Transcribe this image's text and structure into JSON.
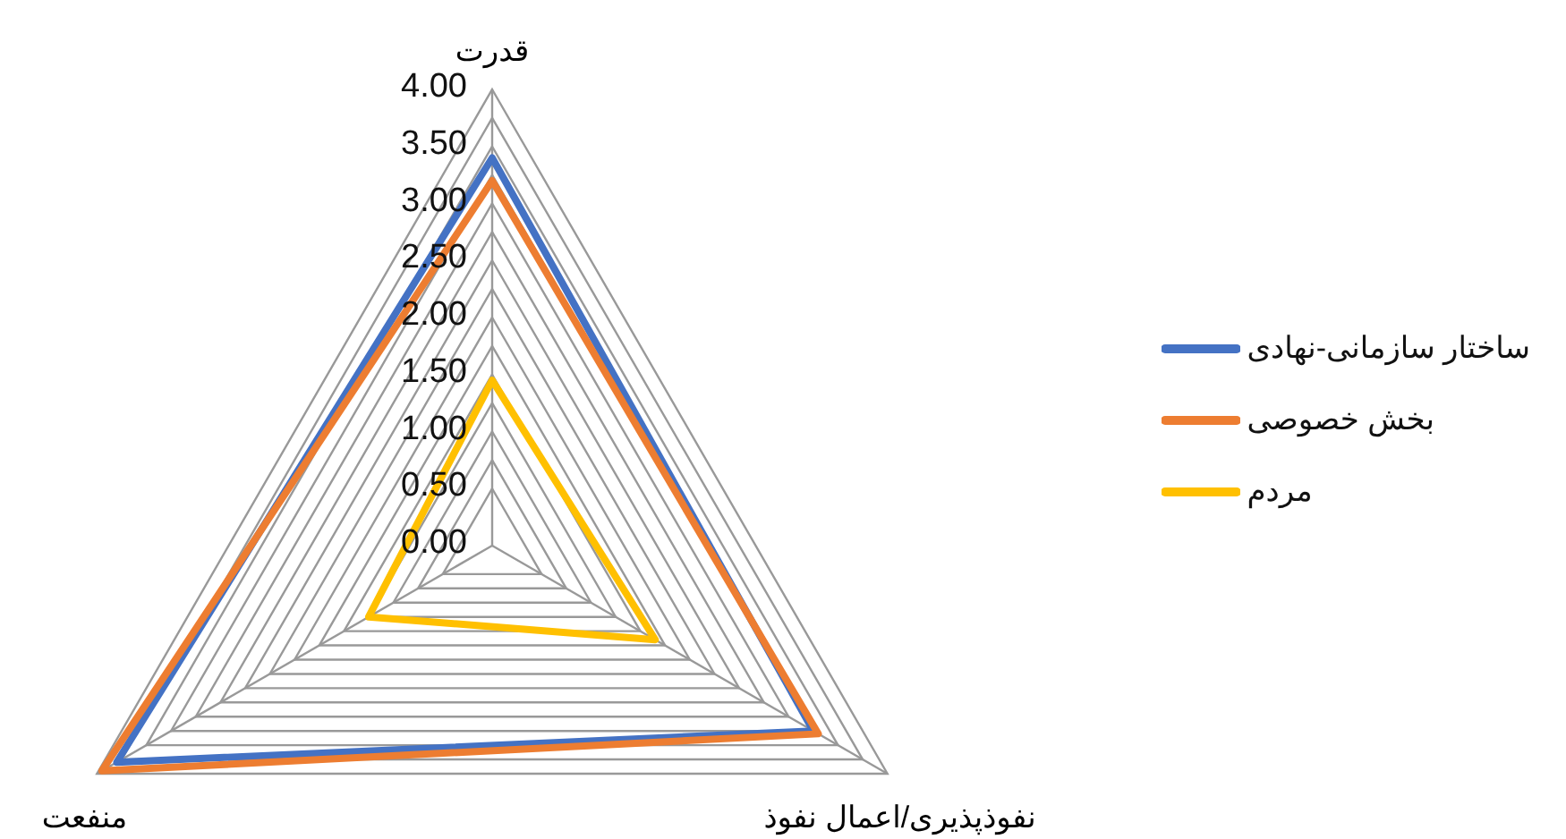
{
  "chart_data": {
    "type": "radar",
    "categories": [
      "قدرت",
      "نفوذپذیری/اعمال نفوذ",
      "منفعت"
    ],
    "series": [
      {
        "name": "ساختار سازمانی-نهادی",
        "color": "#4472c4",
        "values": [
          3.4,
          3.25,
          3.8
        ]
      },
      {
        "name": "بخش خصوصی",
        "color": "#ed7d31",
        "values": [
          3.2,
          3.3,
          3.95
        ]
      },
      {
        "name": "مردم",
        "color": "#ffc000",
        "values": [
          1.45,
          1.65,
          1.25
        ]
      }
    ],
    "ylim": [
      0,
      4
    ],
    "yticks": [
      {
        "value": 0,
        "label": "0.00"
      },
      {
        "value": 0.5,
        "label": "0.50"
      },
      {
        "value": 1,
        "label": "1.00"
      },
      {
        "value": 1.5,
        "label": "1.50"
      },
      {
        "value": 2,
        "label": "2.00"
      },
      {
        "value": 2.5,
        "label": "2.50"
      },
      {
        "value": 3,
        "label": "3.00"
      },
      {
        "value": 3.5,
        "label": "3.50"
      },
      {
        "value": 4,
        "label": "4.00"
      }
    ],
    "grid": true,
    "legend": "right"
  }
}
